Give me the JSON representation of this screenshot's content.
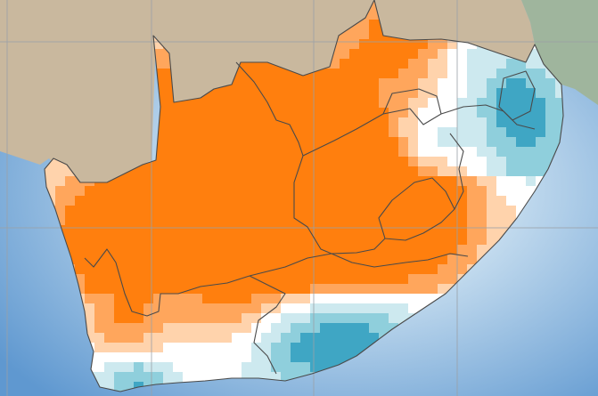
{
  "map": {
    "colors": {
      "ocean_deep": "#5f98d0",
      "ocean_shallow": "#c9dff0",
      "land_neighbor": "#c9b89e",
      "land_east": "#9fb59d",
      "anomaly_dry_strong": "#ff7f0e",
      "anomaly_dry_mid": "#ffa65c",
      "anomaly_dry_light": "#ffd3ac",
      "anomaly_neutral": "#ffffff",
      "anomaly_wet_light": "#cde9ef",
      "anomaly_wet_mid": "#8fcfdc",
      "anomaly_wet_strong": "#3fa6c4",
      "boundary": "#4a4a4a",
      "graticule": "#9aa0a6"
    },
    "graticule": {
      "visible": true
    }
  }
}
